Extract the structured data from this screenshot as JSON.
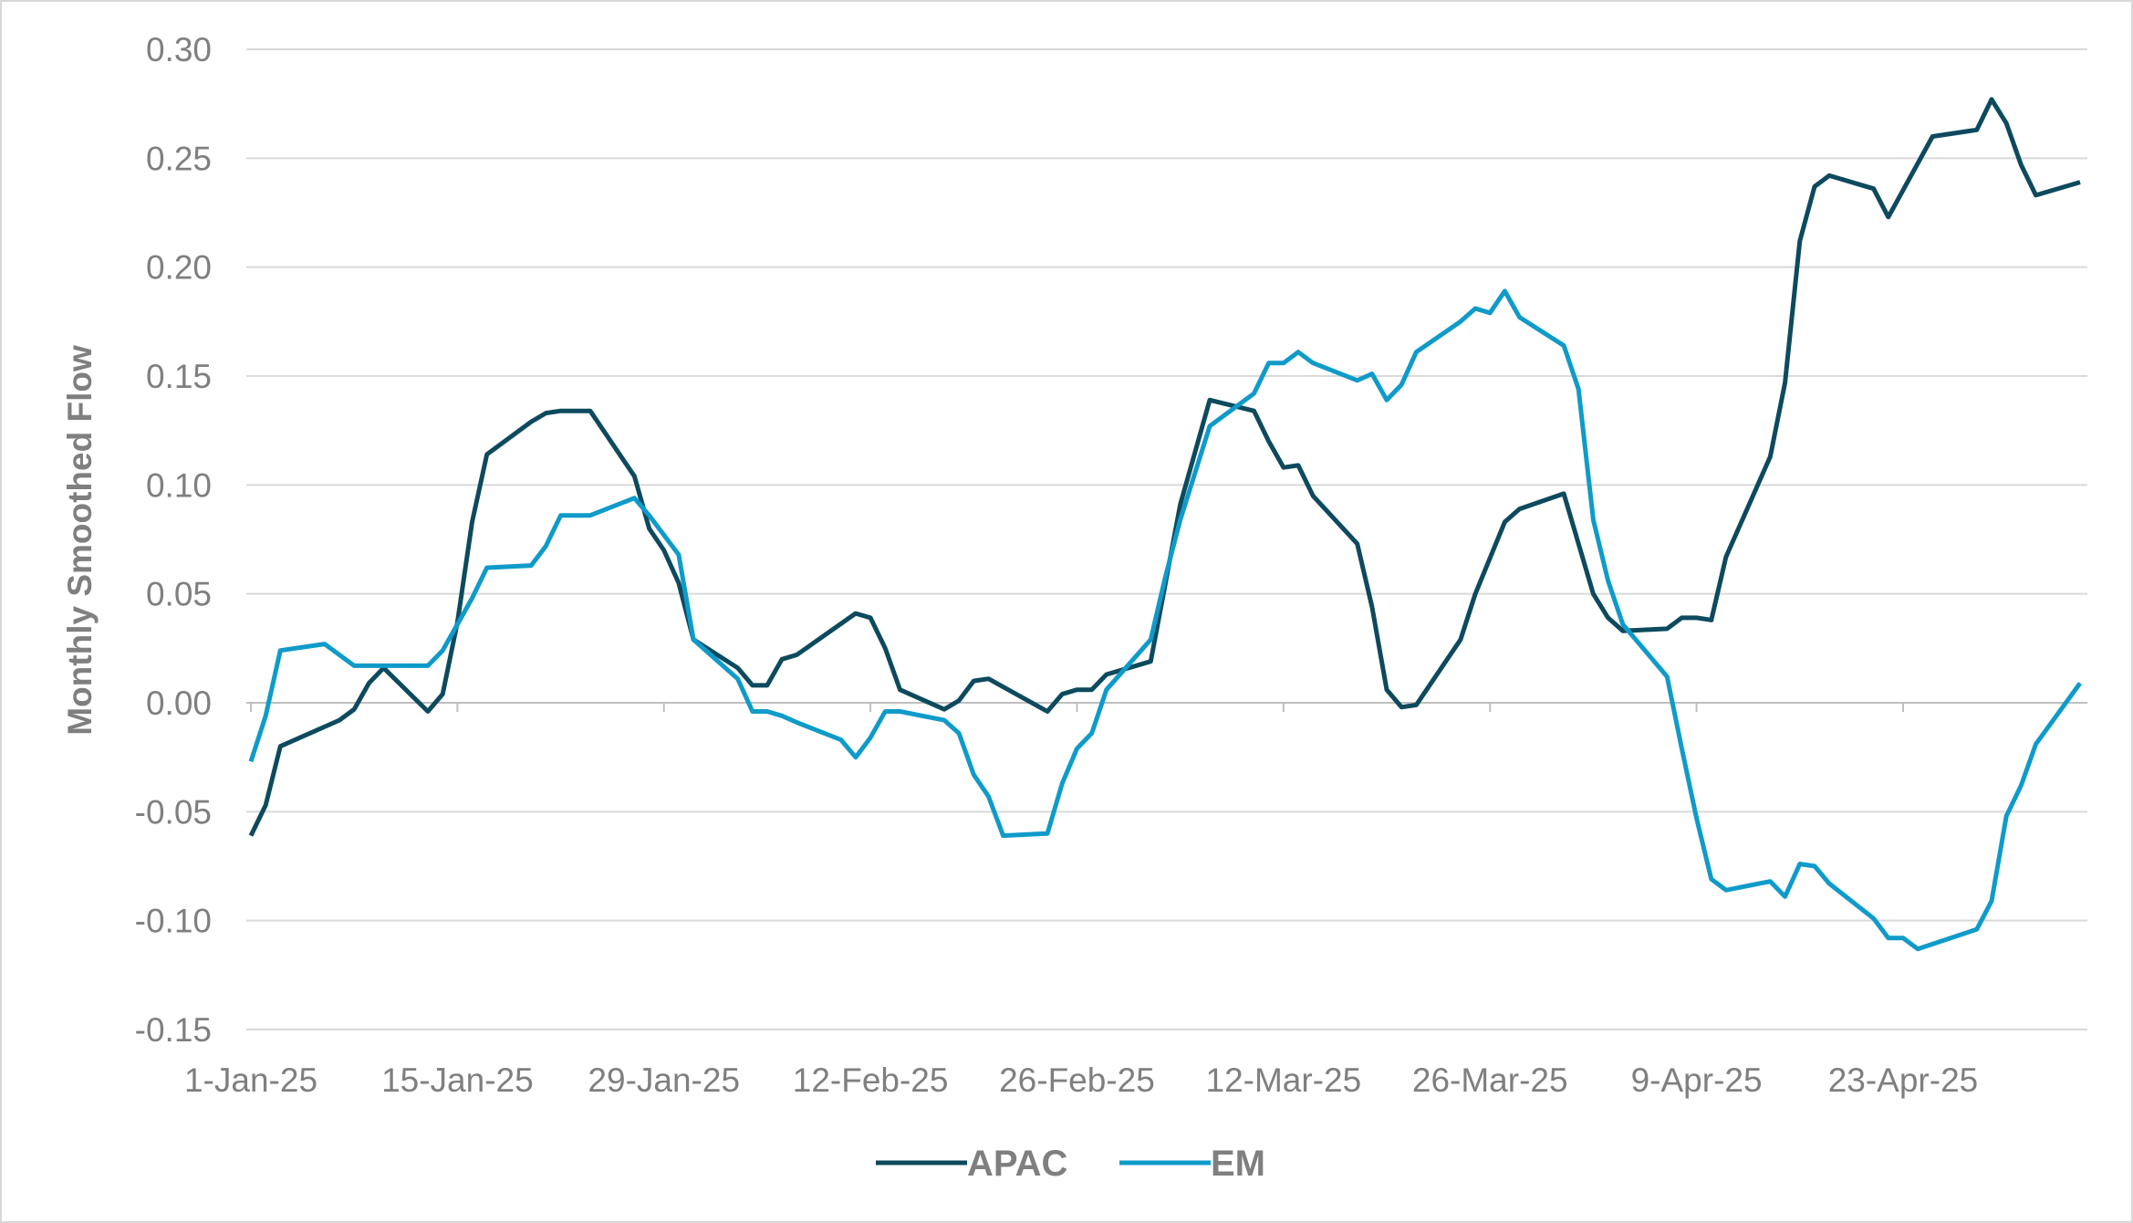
{
  "chart_data": {
    "type": "line",
    "title": "",
    "xlabel": "",
    "ylabel": "Monthly Smoothed Flow",
    "ylim": [
      -0.15,
      0.3
    ],
    "yticks": [
      "-0.15",
      "-0.10",
      "-0.05",
      "0.00",
      "0.05",
      "0.10",
      "0.15",
      "0.20",
      "0.25",
      "0.30"
    ],
    "xticks": [
      "1-Jan-25",
      "15-Jan-25",
      "29-Jan-25",
      "12-Feb-25",
      "26-Feb-25",
      "12-Mar-25",
      "26-Mar-25",
      "9-Apr-25",
      "23-Apr-25"
    ],
    "xtick_dates": [
      "2025-01-01",
      "2025-01-15",
      "2025-01-29",
      "2025-02-12",
      "2025-02-26",
      "2025-03-12",
      "2025-03-26",
      "2025-04-09",
      "2025-04-23"
    ],
    "xlim": [
      "2025-01-01",
      "2025-05-05"
    ],
    "grid": "horizontal",
    "legend": "bottom",
    "series": [
      {
        "name": "APAC",
        "color": "#0d4a5e",
        "points": [
          [
            "2025-01-01",
            -0.061
          ],
          [
            "2025-01-02",
            -0.047
          ],
          [
            "2025-01-03",
            -0.02
          ],
          [
            "2025-01-07",
            -0.008
          ],
          [
            "2025-01-08",
            -0.003
          ],
          [
            "2025-01-09",
            0.009
          ],
          [
            "2025-01-10",
            0.016
          ],
          [
            "2025-01-13",
            -0.004
          ],
          [
            "2025-01-14",
            0.004
          ],
          [
            "2025-01-15",
            0.037
          ],
          [
            "2025-01-16",
            0.083
          ],
          [
            "2025-01-17",
            0.114
          ],
          [
            "2025-01-20",
            0.129
          ],
          [
            "2025-01-21",
            0.133
          ],
          [
            "2025-01-22",
            0.134
          ],
          [
            "2025-01-24",
            0.134
          ],
          [
            "2025-01-27",
            0.104
          ],
          [
            "2025-01-28",
            0.08
          ],
          [
            "2025-01-29",
            0.07
          ],
          [
            "2025-01-30",
            0.055
          ],
          [
            "2025-01-31",
            0.029
          ],
          [
            "2025-02-03",
            0.016
          ],
          [
            "2025-02-04",
            0.008
          ],
          [
            "2025-02-05",
            0.008
          ],
          [
            "2025-02-06",
            0.02
          ],
          [
            "2025-02-07",
            0.022
          ],
          [
            "2025-02-11",
            0.041
          ],
          [
            "2025-02-12",
            0.039
          ],
          [
            "2025-02-13",
            0.025
          ],
          [
            "2025-02-14",
            0.006
          ],
          [
            "2025-02-17",
            -0.003
          ],
          [
            "2025-02-18",
            0.001
          ],
          [
            "2025-02-19",
            0.01
          ],
          [
            "2025-02-20",
            0.011
          ],
          [
            "2025-02-24",
            -0.004
          ],
          [
            "2025-02-25",
            0.004
          ],
          [
            "2025-02-26",
            0.006
          ],
          [
            "2025-02-27",
            0.006
          ],
          [
            "2025-02-28",
            0.013
          ],
          [
            "2025-03-03",
            0.019
          ],
          [
            "2025-03-05",
            0.091
          ],
          [
            "2025-03-07",
            0.139
          ],
          [
            "2025-03-10",
            0.134
          ],
          [
            "2025-03-11",
            0.12
          ],
          [
            "2025-03-12",
            0.108
          ],
          [
            "2025-03-13",
            0.109
          ],
          [
            "2025-03-14",
            0.095
          ],
          [
            "2025-03-17",
            0.073
          ],
          [
            "2025-03-18",
            0.044
          ],
          [
            "2025-03-19",
            0.006
          ],
          [
            "2025-03-20",
            -0.002
          ],
          [
            "2025-03-21",
            -0.001
          ],
          [
            "2025-03-24",
            0.029
          ],
          [
            "2025-03-25",
            0.05
          ],
          [
            "2025-03-27",
            0.083
          ],
          [
            "2025-03-28",
            0.089
          ],
          [
            "2025-03-31",
            0.096
          ],
          [
            "2025-04-02",
            0.05
          ],
          [
            "2025-04-03",
            0.039
          ],
          [
            "2025-04-04",
            0.033
          ],
          [
            "2025-04-07",
            0.034
          ],
          [
            "2025-04-08",
            0.039
          ],
          [
            "2025-04-09",
            0.039
          ],
          [
            "2025-04-10",
            0.038
          ],
          [
            "2025-04-11",
            0.067
          ],
          [
            "2025-04-14",
            0.113
          ],
          [
            "2025-04-15",
            0.147
          ],
          [
            "2025-04-16",
            0.212
          ],
          [
            "2025-04-17",
            0.237
          ],
          [
            "2025-04-18",
            0.242
          ],
          [
            "2025-04-21",
            0.236
          ],
          [
            "2025-04-22",
            0.223
          ],
          [
            "2025-04-25",
            0.26
          ],
          [
            "2025-04-28",
            0.263
          ],
          [
            "2025-04-29",
            0.277
          ],
          [
            "2025-04-30",
            0.266
          ],
          [
            "2025-05-01",
            0.247
          ],
          [
            "2025-05-02",
            0.233
          ],
          [
            "2025-05-05",
            0.239
          ]
        ]
      },
      {
        "name": "EM",
        "color": "#0f9bc9",
        "points": [
          [
            "2025-01-01",
            -0.027
          ],
          [
            "2025-01-02",
            -0.006
          ],
          [
            "2025-01-03",
            0.024
          ],
          [
            "2025-01-06",
            0.027
          ],
          [
            "2025-01-07",
            0.022
          ],
          [
            "2025-01-08",
            0.017
          ],
          [
            "2025-01-09",
            0.017
          ],
          [
            "2025-01-13",
            0.017
          ],
          [
            "2025-01-14",
            0.024
          ],
          [
            "2025-01-16",
            0.048
          ],
          [
            "2025-01-17",
            0.062
          ],
          [
            "2025-01-20",
            0.063
          ],
          [
            "2025-01-21",
            0.072
          ],
          [
            "2025-01-22",
            0.086
          ],
          [
            "2025-01-24",
            0.086
          ],
          [
            "2025-01-27",
            0.094
          ],
          [
            "2025-01-28",
            0.086
          ],
          [
            "2025-01-30",
            0.068
          ],
          [
            "2025-01-31",
            0.029
          ],
          [
            "2025-02-03",
            0.011
          ],
          [
            "2025-02-04",
            -0.004
          ],
          [
            "2025-02-05",
            -0.004
          ],
          [
            "2025-02-06",
            -0.006
          ],
          [
            "2025-02-07",
            -0.009
          ],
          [
            "2025-02-10",
            -0.017
          ],
          [
            "2025-02-11",
            -0.025
          ],
          [
            "2025-02-12",
            -0.016
          ],
          [
            "2025-02-13",
            -0.004
          ],
          [
            "2025-02-14",
            -0.004
          ],
          [
            "2025-02-17",
            -0.008
          ],
          [
            "2025-02-18",
            -0.014
          ],
          [
            "2025-02-19",
            -0.033
          ],
          [
            "2025-02-20",
            -0.043
          ],
          [
            "2025-02-21",
            -0.061
          ],
          [
            "2025-02-24",
            -0.06
          ],
          [
            "2025-02-25",
            -0.037
          ],
          [
            "2025-02-26",
            -0.021
          ],
          [
            "2025-02-27",
            -0.014
          ],
          [
            "2025-02-28",
            0.006
          ],
          [
            "2025-03-03",
            0.029
          ],
          [
            "2025-03-04",
            0.058
          ],
          [
            "2025-03-05",
            0.084
          ],
          [
            "2025-03-07",
            0.127
          ],
          [
            "2025-03-10",
            0.142
          ],
          [
            "2025-03-11",
            0.156
          ],
          [
            "2025-03-12",
            0.156
          ],
          [
            "2025-03-13",
            0.161
          ],
          [
            "2025-03-14",
            0.156
          ],
          [
            "2025-03-17",
            0.148
          ],
          [
            "2025-03-18",
            0.151
          ],
          [
            "2025-03-19",
            0.139
          ],
          [
            "2025-03-20",
            0.146
          ],
          [
            "2025-03-21",
            0.161
          ],
          [
            "2025-03-24",
            0.175
          ],
          [
            "2025-03-25",
            0.181
          ],
          [
            "2025-03-26",
            0.179
          ],
          [
            "2025-03-27",
            0.189
          ],
          [
            "2025-03-28",
            0.177
          ],
          [
            "2025-03-31",
            0.164
          ],
          [
            "2025-04-01",
            0.144
          ],
          [
            "2025-04-02",
            0.084
          ],
          [
            "2025-04-03",
            0.056
          ],
          [
            "2025-04-04",
            0.036
          ],
          [
            "2025-04-07",
            0.012
          ],
          [
            "2025-04-08",
            -0.021
          ],
          [
            "2025-04-09",
            -0.053
          ],
          [
            "2025-04-10",
            -0.081
          ],
          [
            "2025-04-11",
            -0.086
          ],
          [
            "2025-04-14",
            -0.082
          ],
          [
            "2025-04-15",
            -0.089
          ],
          [
            "2025-04-16",
            -0.074
          ],
          [
            "2025-04-17",
            -0.075
          ],
          [
            "2025-04-18",
            -0.083
          ],
          [
            "2025-04-21",
            -0.099
          ],
          [
            "2025-04-22",
            -0.108
          ],
          [
            "2025-04-23",
            -0.108
          ],
          [
            "2025-04-24",
            -0.113
          ],
          [
            "2025-04-28",
            -0.104
          ],
          [
            "2025-04-29",
            -0.091
          ],
          [
            "2025-04-30",
            -0.052
          ],
          [
            "2025-05-01",
            -0.038
          ],
          [
            "2025-05-02",
            -0.019
          ],
          [
            "2025-05-05",
            0.009
          ]
        ]
      }
    ]
  }
}
